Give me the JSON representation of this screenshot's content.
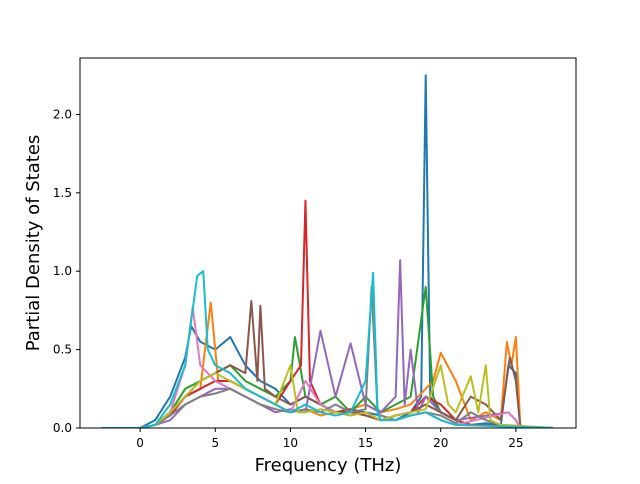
{
  "chart_data": {
    "type": "line",
    "title": "",
    "xlabel": "Frequency (THz)",
    "ylabel": "Partial Density of States",
    "xlim": [
      -4.0,
      29.0
    ],
    "ylim": [
      0.0,
      2.36
    ],
    "xticks": [
      0,
      5,
      10,
      15,
      20,
      25
    ],
    "yticks": [
      0.0,
      0.5,
      1.0,
      1.5,
      2.0
    ],
    "xtick_labels": [
      "0",
      "5",
      "10",
      "15",
      "20",
      "25"
    ],
    "ytick_labels": [
      "0.0",
      "0.5",
      "1.0",
      "1.5",
      "2.0"
    ],
    "grid": false,
    "legend": "none",
    "series": [
      {
        "color": "#1f77b4",
        "points": [
          [
            -2.6,
            0
          ],
          [
            0,
            0
          ],
          [
            1.0,
            0.05
          ],
          [
            2.0,
            0.2
          ],
          [
            3.0,
            0.45
          ],
          [
            3.4,
            0.65
          ],
          [
            4.0,
            0.55
          ],
          [
            5.0,
            0.5
          ],
          [
            6.0,
            0.58
          ],
          [
            7.0,
            0.4
          ],
          [
            8.0,
            0.3
          ],
          [
            9.0,
            0.25
          ],
          [
            10.0,
            0.15
          ],
          [
            11.0,
            0.2
          ],
          [
            12.0,
            0.15
          ],
          [
            13.0,
            0.1
          ],
          [
            14.0,
            0.12
          ],
          [
            15.0,
            0.1
          ],
          [
            16.0,
            0.08
          ],
          [
            17.0,
            0.05
          ],
          [
            18.0,
            0.1
          ],
          [
            18.7,
            0.2
          ],
          [
            19.0,
            2.25
          ],
          [
            19.3,
            0.2
          ],
          [
            20.0,
            0.1
          ],
          [
            21.0,
            0.05
          ],
          [
            22.0,
            0.02
          ],
          [
            23.0,
            0.03
          ],
          [
            24.0,
            0.02
          ],
          [
            24.5,
            0.4
          ],
          [
            25.0,
            0.35
          ],
          [
            25.3,
            0
          ],
          [
            27.5,
            0
          ]
        ]
      },
      {
        "color": "#ff7f0e",
        "points": [
          [
            -2.6,
            0
          ],
          [
            0,
            0
          ],
          [
            1.0,
            0.02
          ],
          [
            2.0,
            0.1
          ],
          [
            3.0,
            0.2
          ],
          [
            4.0,
            0.25
          ],
          [
            4.7,
            0.8
          ],
          [
            5.2,
            0.3
          ],
          [
            6.0,
            0.3
          ],
          [
            7.0,
            0.25
          ],
          [
            8.0,
            0.2
          ],
          [
            9.0,
            0.15
          ],
          [
            10.0,
            0.1
          ],
          [
            11.0,
            0.12
          ],
          [
            12.0,
            0.08
          ],
          [
            13.0,
            0.1
          ],
          [
            14.0,
            0.12
          ],
          [
            15.0,
            0.15
          ],
          [
            16.0,
            0.1
          ],
          [
            17.0,
            0.12
          ],
          [
            18.0,
            0.15
          ],
          [
            19.5,
            0.3
          ],
          [
            20.0,
            0.48
          ],
          [
            21.0,
            0.3
          ],
          [
            22.0,
            0.05
          ],
          [
            23.0,
            0.1
          ],
          [
            24.0,
            0.05
          ],
          [
            24.4,
            0.55
          ],
          [
            24.7,
            0.4
          ],
          [
            25.0,
            0.58
          ],
          [
            25.3,
            0
          ],
          [
            27.5,
            0
          ]
        ]
      },
      {
        "color": "#2ca02c",
        "points": [
          [
            -2.6,
            0
          ],
          [
            0,
            0
          ],
          [
            1.0,
            0.02
          ],
          [
            2.0,
            0.1
          ],
          [
            3.0,
            0.25
          ],
          [
            4.0,
            0.3
          ],
          [
            5.0,
            0.35
          ],
          [
            6.0,
            0.4
          ],
          [
            7.0,
            0.3
          ],
          [
            8.0,
            0.25
          ],
          [
            9.0,
            0.2
          ],
          [
            10.0,
            0.3
          ],
          [
            10.3,
            0.58
          ],
          [
            11.0,
            0.2
          ],
          [
            12.0,
            0.15
          ],
          [
            13.0,
            0.2
          ],
          [
            14.0,
            0.1
          ],
          [
            15.0,
            0.2
          ],
          [
            16.0,
            0.1
          ],
          [
            17.0,
            0.15
          ],
          [
            18.0,
            0.2
          ],
          [
            19.0,
            0.9
          ],
          [
            19.5,
            0.2
          ],
          [
            20.0,
            0.1
          ],
          [
            21.0,
            0.05
          ],
          [
            22.0,
            0.02
          ],
          [
            27.5,
            0
          ]
        ]
      },
      {
        "color": "#d62728",
        "points": [
          [
            -2.6,
            0
          ],
          [
            0,
            0
          ],
          [
            1.0,
            0.02
          ],
          [
            2.0,
            0.08
          ],
          [
            3.0,
            0.2
          ],
          [
            4.0,
            0.25
          ],
          [
            5.0,
            0.3
          ],
          [
            6.0,
            0.3
          ],
          [
            7.0,
            0.25
          ],
          [
            8.0,
            0.2
          ],
          [
            9.0,
            0.15
          ],
          [
            10.0,
            0.3
          ],
          [
            10.7,
            0.4
          ],
          [
            11.0,
            1.45
          ],
          [
            11.3,
            0.3
          ],
          [
            12.0,
            0.15
          ],
          [
            13.0,
            0.1
          ],
          [
            14.0,
            0.12
          ],
          [
            15.0,
            0.08
          ],
          [
            16.0,
            0.05
          ],
          [
            17.0,
            0.08
          ],
          [
            18.0,
            0.1
          ],
          [
            19.0,
            0.2
          ],
          [
            20.0,
            0.15
          ],
          [
            21.0,
            0.05
          ],
          [
            22.0,
            0.02
          ],
          [
            27.5,
            0
          ]
        ]
      },
      {
        "color": "#9467bd",
        "points": [
          [
            -2.6,
            0
          ],
          [
            0,
            0
          ],
          [
            1.0,
            0.02
          ],
          [
            2.0,
            0.05
          ],
          [
            3.0,
            0.15
          ],
          [
            4.0,
            0.2
          ],
          [
            5.0,
            0.25
          ],
          [
            6.0,
            0.25
          ],
          [
            7.0,
            0.2
          ],
          [
            8.0,
            0.15
          ],
          [
            9.0,
            0.1
          ],
          [
            10.0,
            0.12
          ],
          [
            11.0,
            0.1
          ],
          [
            12.0,
            0.62
          ],
          [
            13.0,
            0.2
          ],
          [
            14.0,
            0.54
          ],
          [
            15.0,
            0.15
          ],
          [
            16.0,
            0.1
          ],
          [
            17.0,
            0.2
          ],
          [
            17.3,
            1.07
          ],
          [
            17.6,
            0.15
          ],
          [
            18.0,
            0.5
          ],
          [
            18.5,
            0.1
          ],
          [
            19.0,
            0.2
          ],
          [
            20.0,
            0.1
          ],
          [
            21.0,
            0.05
          ],
          [
            24.5,
            0.1
          ],
          [
            25.0,
            0.05
          ],
          [
            25.3,
            0
          ],
          [
            27.5,
            0
          ]
        ]
      },
      {
        "color": "#8c564b",
        "points": [
          [
            -2.6,
            0
          ],
          [
            0,
            0
          ],
          [
            1.0,
            0.02
          ],
          [
            2.0,
            0.1
          ],
          [
            3.0,
            0.2
          ],
          [
            4.0,
            0.3
          ],
          [
            5.0,
            0.35
          ],
          [
            6.0,
            0.4
          ],
          [
            7.0,
            0.35
          ],
          [
            7.4,
            0.81
          ],
          [
            7.8,
            0.3
          ],
          [
            8.0,
            0.78
          ],
          [
            8.3,
            0.25
          ],
          [
            9.0,
            0.2
          ],
          [
            10.0,
            0.15
          ],
          [
            11.0,
            0.2
          ],
          [
            12.0,
            0.15
          ],
          [
            13.0,
            0.1
          ],
          [
            14.0,
            0.1
          ],
          [
            15.0,
            0.08
          ],
          [
            16.0,
            0.05
          ],
          [
            17.0,
            0.08
          ],
          [
            18.0,
            0.1
          ],
          [
            19.0,
            0.15
          ],
          [
            20.0,
            0.1
          ],
          [
            21.0,
            0.05
          ],
          [
            22.0,
            0.2
          ],
          [
            23.0,
            0.15
          ],
          [
            24.0,
            0.05
          ],
          [
            24.6,
            0.45
          ],
          [
            25.0,
            0.3
          ],
          [
            25.3,
            0
          ],
          [
            27.5,
            0
          ]
        ]
      },
      {
        "color": "#e377c2",
        "points": [
          [
            -2.6,
            0
          ],
          [
            0,
            0
          ],
          [
            1.0,
            0.02
          ],
          [
            2.0,
            0.1
          ],
          [
            3.0,
            0.4
          ],
          [
            3.5,
            0.77
          ],
          [
            4.0,
            0.4
          ],
          [
            5.0,
            0.3
          ],
          [
            6.0,
            0.25
          ],
          [
            7.0,
            0.2
          ],
          [
            8.0,
            0.15
          ],
          [
            9.0,
            0.12
          ],
          [
            10.0,
            0.1
          ],
          [
            11.0,
            0.3
          ],
          [
            12.0,
            0.15
          ],
          [
            13.0,
            0.1
          ],
          [
            14.0,
            0.08
          ],
          [
            15.0,
            0.1
          ],
          [
            16.0,
            0.05
          ],
          [
            17.0,
            0.05
          ],
          [
            18.0,
            0.08
          ],
          [
            19.0,
            0.1
          ],
          [
            20.0,
            0.05
          ],
          [
            21.0,
            0.02
          ],
          [
            24.5,
            0.1
          ],
          [
            25.0,
            0.05
          ],
          [
            25.3,
            0
          ],
          [
            27.5,
            0
          ]
        ]
      },
      {
        "color": "#7f7f7f",
        "points": [
          [
            -2.6,
            0
          ],
          [
            0,
            0
          ],
          [
            1.0,
            0.02
          ],
          [
            2.0,
            0.08
          ],
          [
            3.0,
            0.15
          ],
          [
            4.0,
            0.2
          ],
          [
            5.0,
            0.22
          ],
          [
            6.0,
            0.25
          ],
          [
            7.0,
            0.2
          ],
          [
            8.0,
            0.15
          ],
          [
            9.0,
            0.12
          ],
          [
            10.0,
            0.1
          ],
          [
            11.0,
            0.12
          ],
          [
            12.0,
            0.1
          ],
          [
            13.0,
            0.15
          ],
          [
            14.0,
            0.1
          ],
          [
            15.0,
            0.12
          ],
          [
            15.4,
            0.9
          ],
          [
            15.8,
            0.1
          ],
          [
            16.0,
            0.08
          ],
          [
            17.0,
            0.05
          ],
          [
            18.0,
            0.08
          ],
          [
            19.0,
            0.1
          ],
          [
            20.0,
            0.08
          ],
          [
            21.0,
            0.03
          ],
          [
            22.0,
            0.1
          ],
          [
            23.0,
            0.05
          ],
          [
            24.0,
            0.02
          ],
          [
            27.5,
            0
          ]
        ]
      },
      {
        "color": "#bcbd22",
        "points": [
          [
            -2.6,
            0
          ],
          [
            0,
            0
          ],
          [
            1.0,
            0.02
          ],
          [
            2.0,
            0.1
          ],
          [
            3.0,
            0.2
          ],
          [
            4.0,
            0.3
          ],
          [
            5.0,
            0.35
          ],
          [
            6.0,
            0.3
          ],
          [
            7.0,
            0.25
          ],
          [
            8.0,
            0.2
          ],
          [
            9.0,
            0.15
          ],
          [
            10.0,
            0.4
          ],
          [
            10.5,
            0.1
          ],
          [
            11.0,
            0.1
          ],
          [
            12.0,
            0.12
          ],
          [
            13.0,
            0.1
          ],
          [
            14.0,
            0.08
          ],
          [
            15.0,
            0.1
          ],
          [
            16.0,
            0.05
          ],
          [
            17.0,
            0.08
          ],
          [
            18.0,
            0.1
          ],
          [
            19.0,
            0.12
          ],
          [
            20.0,
            0.4
          ],
          [
            20.5,
            0.15
          ],
          [
            21.0,
            0.1
          ],
          [
            22.0,
            0.33
          ],
          [
            22.5,
            0.1
          ],
          [
            23.0,
            0.4
          ],
          [
            23.3,
            0.05
          ],
          [
            24.0,
            0.02
          ],
          [
            27.5,
            0
          ]
        ]
      },
      {
        "color": "#17becf",
        "points": [
          [
            -2.6,
            0
          ],
          [
            0,
            0
          ],
          [
            1.0,
            0.02
          ],
          [
            2.0,
            0.15
          ],
          [
            3.0,
            0.4
          ],
          [
            3.8,
            0.97
          ],
          [
            4.2,
            1.0
          ],
          [
            4.5,
            0.5
          ],
          [
            5.0,
            0.4
          ],
          [
            6.0,
            0.35
          ],
          [
            7.0,
            0.25
          ],
          [
            8.0,
            0.2
          ],
          [
            9.0,
            0.15
          ],
          [
            10.0,
            0.1
          ],
          [
            11.0,
            0.15
          ],
          [
            12.0,
            0.1
          ],
          [
            13.0,
            0.08
          ],
          [
            14.0,
            0.1
          ],
          [
            15.0,
            0.3
          ],
          [
            15.5,
            0.99
          ],
          [
            15.8,
            0.1
          ],
          [
            16.0,
            0.05
          ],
          [
            17.0,
            0.05
          ],
          [
            18.0,
            0.08
          ],
          [
            19.0,
            0.1
          ],
          [
            20.0,
            0.05
          ],
          [
            21.0,
            0.02
          ],
          [
            27.5,
            0
          ]
        ]
      }
    ]
  }
}
